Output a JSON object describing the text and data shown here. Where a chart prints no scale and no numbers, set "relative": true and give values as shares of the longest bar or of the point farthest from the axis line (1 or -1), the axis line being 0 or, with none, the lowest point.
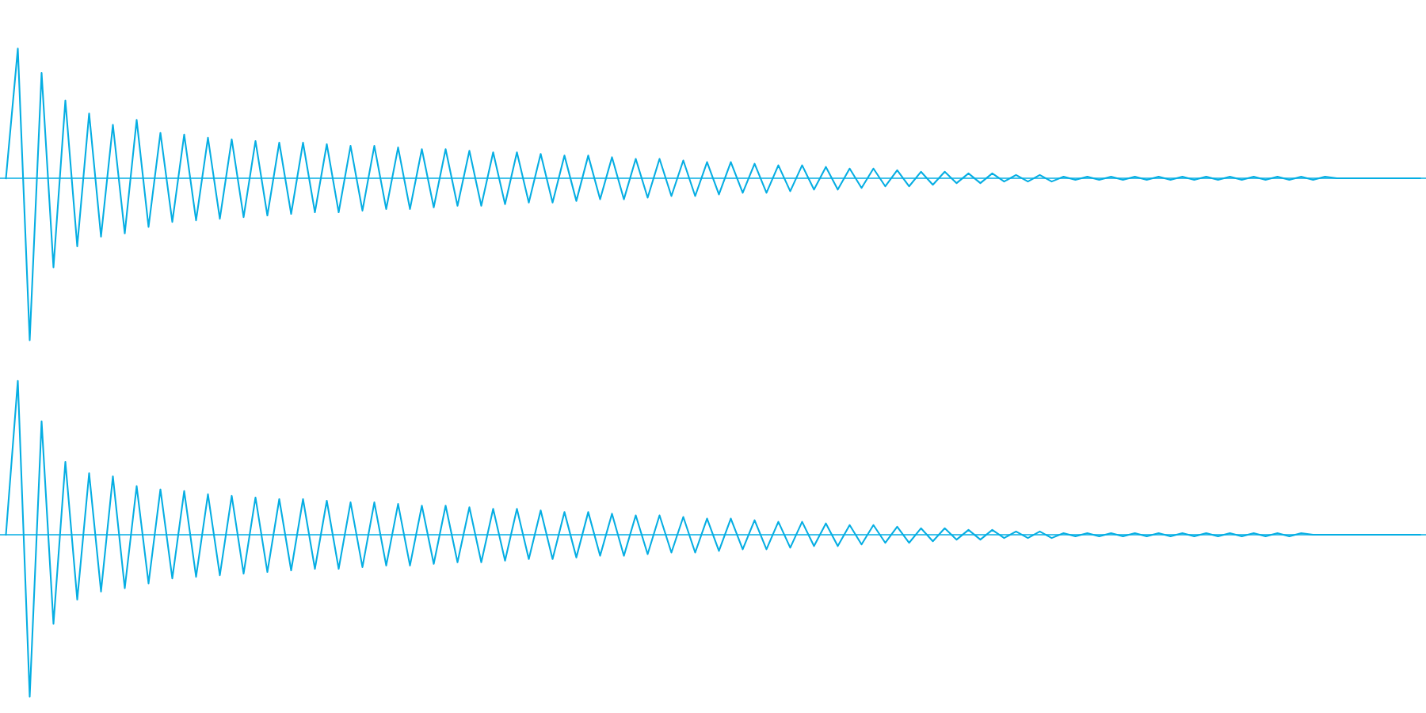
{
  "chart_data": [
    {
      "type": "line",
      "relative": true,
      "color": "#06aee3",
      "ref_lines": [
        {
          "axis": "y",
          "value": 0,
          "color": "#06aee3"
        }
      ],
      "categories": [
        null,
        null,
        null,
        null,
        null,
        null,
        null,
        null,
        null,
        null,
        null,
        null,
        null,
        null,
        null,
        null,
        null,
        null,
        null,
        null,
        null,
        null,
        null,
        null,
        null,
        null,
        null,
        null,
        null,
        null,
        null,
        null,
        null,
        null,
        null,
        null,
        null,
        null,
        null,
        null,
        null,
        null,
        null,
        null,
        null,
        null,
        null,
        null,
        null,
        null,
        null,
        null,
        null,
        null,
        null,
        null,
        null,
        null,
        null,
        null,
        null,
        null,
        null,
        null,
        null,
        null,
        null,
        null,
        null,
        null,
        null,
        null,
        null,
        null,
        null,
        null,
        null,
        null,
        null,
        null,
        null,
        null,
        null,
        null,
        null,
        null,
        null,
        null,
        null,
        null,
        null,
        null,
        null,
        null,
        null,
        null,
        null,
        null,
        null,
        null,
        null,
        null,
        null,
        null,
        null,
        null,
        null,
        null,
        null,
        null,
        null,
        null,
        null,
        null,
        null,
        null,
        null,
        null,
        null,
        null
      ],
      "values": [
        0,
        0.8,
        -1,
        0.65,
        -0.55,
        0.48,
        -0.42,
        0.4,
        -0.36,
        0.33,
        -0.34,
        0.36,
        -0.3,
        0.28,
        -0.27,
        0.27,
        -0.26,
        0.25,
        -0.25,
        0.24,
        -0.24,
        0.23,
        -0.23,
        0.22,
        -0.22,
        0.22,
        -0.21,
        0.21,
        -0.21,
        0.2,
        -0.2,
        0.2,
        -0.19,
        0.19,
        -0.19,
        0.18,
        -0.18,
        0.18,
        -0.17,
        0.17,
        -0.17,
        0.16,
        -0.16,
        0.16,
        -0.15,
        0.15,
        -0.15,
        0.14,
        -0.14,
        0.14,
        -0.13,
        0.13,
        -0.13,
        0.12,
        -0.12,
        0.12,
        -0.11,
        0.11,
        -0.11,
        0.1,
        -0.1,
        0.1,
        -0.09,
        0.09,
        -0.09,
        0.08,
        -0.08,
        0.08,
        -0.07,
        0.07,
        -0.07,
        0.06,
        -0.06,
        0.06,
        -0.05,
        0.05,
        -0.05,
        0.04,
        -0.04,
        0.04,
        -0.03,
        0.03,
        -0.03,
        0.03,
        -0.02,
        0.02,
        -0.02,
        0.02,
        -0.02,
        0.01,
        -0.01,
        0.01,
        -0.01,
        0.01,
        -0.01,
        0.01,
        -0.01,
        0.01,
        -0.01,
        0.01,
        -0.01,
        0.01,
        -0.01,
        0.01,
        -0.01,
        0.01,
        -0.01,
        0.01,
        -0.01,
        0.01,
        -0.01,
        0.01,
        0,
        0,
        0,
        0,
        0,
        0,
        0,
        0
      ]
    },
    {
      "type": "line",
      "relative": true,
      "color": "#06aee3",
      "ref_lines": [
        {
          "axis": "y",
          "value": 0,
          "color": "#06aee3"
        }
      ],
      "categories": [
        null,
        null,
        null,
        null,
        null,
        null,
        null,
        null,
        null,
        null,
        null,
        null,
        null,
        null,
        null,
        null,
        null,
        null,
        null,
        null,
        null,
        null,
        null,
        null,
        null,
        null,
        null,
        null,
        null,
        null,
        null,
        null,
        null,
        null,
        null,
        null,
        null,
        null,
        null,
        null,
        null,
        null,
        null,
        null,
        null,
        null,
        null,
        null,
        null,
        null,
        null,
        null,
        null,
        null,
        null,
        null,
        null,
        null,
        null,
        null,
        null,
        null,
        null,
        null,
        null,
        null,
        null,
        null,
        null,
        null,
        null,
        null,
        null,
        null,
        null,
        null,
        null,
        null,
        null,
        null,
        null,
        null,
        null,
        null,
        null,
        null,
        null,
        null,
        null,
        null,
        null,
        null,
        null,
        null,
        null,
        null,
        null,
        null,
        null,
        null,
        null,
        null,
        null,
        null,
        null,
        null,
        null,
        null,
        null,
        null,
        null,
        null,
        null,
        null,
        null,
        null,
        null,
        null,
        null,
        null
      ],
      "values": [
        0,
        0.95,
        -1,
        0.7,
        -0.55,
        0.45,
        -0.4,
        0.38,
        -0.35,
        0.36,
        -0.33,
        0.3,
        -0.3,
        0.28,
        -0.27,
        0.27,
        -0.26,
        0.25,
        -0.25,
        0.24,
        -0.24,
        0.23,
        -0.23,
        0.22,
        -0.22,
        0.22,
        -0.21,
        0.21,
        -0.21,
        0.2,
        -0.2,
        0.2,
        -0.19,
        0.19,
        -0.19,
        0.18,
        -0.18,
        0.18,
        -0.17,
        0.17,
        -0.17,
        0.16,
        -0.16,
        0.16,
        -0.15,
        0.15,
        -0.15,
        0.14,
        -0.14,
        0.14,
        -0.13,
        0.13,
        -0.13,
        0.12,
        -0.12,
        0.12,
        -0.11,
        0.11,
        -0.11,
        0.1,
        -0.1,
        0.1,
        -0.09,
        0.09,
        -0.09,
        0.08,
        -0.08,
        0.08,
        -0.07,
        0.07,
        -0.07,
        0.06,
        -0.06,
        0.06,
        -0.05,
        0.05,
        -0.05,
        0.04,
        -0.04,
        0.04,
        -0.03,
        0.03,
        -0.03,
        0.03,
        -0.02,
        0.02,
        -0.02,
        0.02,
        -0.02,
        0.01,
        -0.01,
        0.01,
        -0.01,
        0.01,
        -0.01,
        0.01,
        -0.01,
        0.01,
        -0.01,
        0.01,
        -0.01,
        0.01,
        -0.01,
        0.01,
        -0.01,
        0.01,
        -0.01,
        0.01,
        -0.01,
        0.01,
        0,
        0,
        0,
        0,
        0,
        0,
        0,
        0,
        0,
        0
      ]
    }
  ]
}
